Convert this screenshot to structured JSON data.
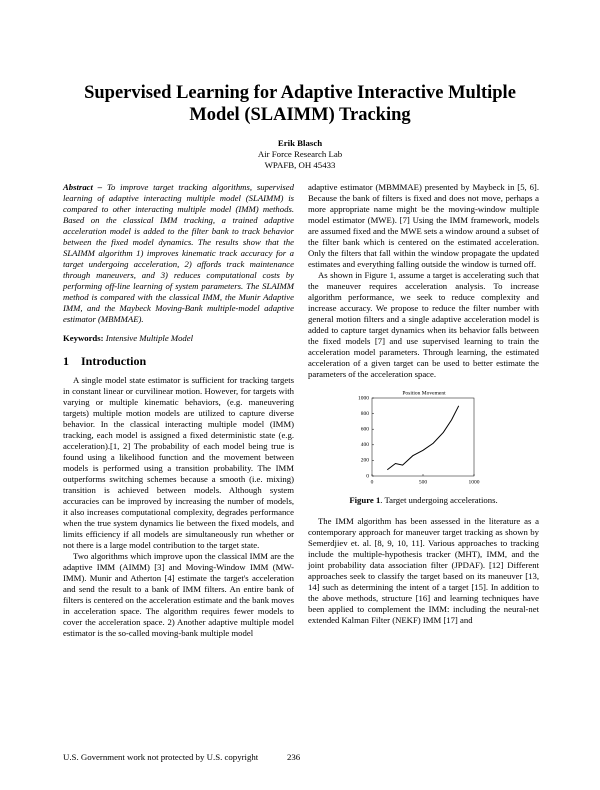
{
  "header": {
    "title": "Supervised Learning for Adaptive Interactive Multiple Model (SLAIMM) Tracking",
    "author": "Erik Blasch",
    "affiliation": "Air Force Research Lab",
    "address": "WPAFB, OH 45433"
  },
  "abstract": {
    "label": "Abstract –",
    "text": "To improve target tracking algorithms, supervised learning of adaptive interacting multiple model (SLAIMM) is compared to other interacting multiple model (IMM) methods. Based on the classical IMM tracking, a trained adaptive acceleration model is added to the filter bank to track behavior between the fixed model dynamics. The results show that the SLAIMM algorithm 1) improves kinematic track accuracy for a target undergoing acceleration, 2) affords track maintenance through maneuvers, and 3) reduces computational costs by performing off-line learning of system parameters. The SLAIMM method is compared with the classical IMM, the Munir Adaptive IMM, and the Maybeck Moving-Bank multiple-model adaptive estimator (MBMMAE)."
  },
  "keywords": {
    "label": "Keywords:",
    "text": "Intensive Multiple Model"
  },
  "section": {
    "number": "1",
    "title": "Introduction",
    "paragraphs": [
      "A single model state estimator is sufficient for tracking targets in constant linear or curvilinear motion. However, for targets with varying or multiple kinematic behaviors, (e.g. maneuvering targets) multiple motion models are utilized to capture diverse behavior. In the classical interacting multiple model (IMM) tracking, each model is assigned a fixed deterministic state (e.g. acceleration).[1, 2] The probability of each model being true is found using a likelihood function and the movement between models is performed using a transition probability. The IMM outperforms switching schemes because a smooth (i.e. mixing) transition is achieved between models. Although system accuracies can be improved by increasing the number of models, it also increases computational complexity, degrades performance when the true system dynamics lie between the fixed models, and limits efficiency if all models are simultaneously run whether or not there is a large model contribution to the target state.",
      "Two algorithms which improve upon the classical IMM are the adaptive IMM (AIMM) [3] and Moving-Window IMM (MW-IMM). Munir and Atherton [4] estimate the target's acceleration and send the result to a bank of IMM filters. An entire bank of filters is centered on the acceleration estimate and the bank moves in acceleration space. The algorithm requires fewer models to cover the acceleration space. 2) Another adaptive multiple model estimator is the so-called moving-bank multiple model",
      "adaptive estimator (MBMMAE) presented by Maybeck in [5, 6]. Because the bank of filters is fixed and does not move, perhaps a more appropriate name might be the moving-window multiple model estimator (MWE). [7] Using the IMM framework, models are assumed fixed and the MWE sets a window around a subset of the filter bank which is centered on the estimated acceleration. Only the filters that fall within the window propagate the updated estimates and everything falling outside the window is turned off.",
      "As shown in Figure 1, assume a target is accelerating such that the maneuver requires acceleration analysis. To increase algorithm performance, we seek to reduce complexity and increase accuracy. We propose to reduce the filter number with general motion filters and a single adaptive acceleration model is added to capture target dynamics when its behavior falls between the fixed models [7] and use supervised learning to train the acceleration model parameters. Through learning, the estimated acceleration of a given target can be used to better estimate the parameters of the acceleration space.",
      "The IMM algorithm has been assessed in the literature as a contemporary approach for maneuver target tracking as shown by Semerdjiev et. al. [8, 9, 10, 11]. Various approaches to tracking include the multiple-hypothesis tracker (MHT), IMM, and the joint probability data association filter (JPDAF). [12] Different approaches seek to classify the target based on its maneuver [13, 14] such as determining the intent of a target [15]. In addition to the above methods, structure [16] and learning techniques have been applied to complement the IMM: including the neural-net extended Kalman Filter (NEKF) IMM [17] and"
    ]
  },
  "figure": {
    "caption_label": "Figure 1",
    "caption": ". Target undergoing accelerations.",
    "chart_data": {
      "type": "line",
      "title": "Position Movement",
      "xlim": [
        0,
        1000
      ],
      "ylim": [
        0,
        1000
      ],
      "xticks": [
        0,
        500,
        1000
      ],
      "yticks": [
        0,
        200,
        400,
        600,
        800,
        1000
      ],
      "series": [
        {
          "color": "#000000",
          "x": [
            150,
            230,
            300,
            400,
            500,
            600,
            700,
            780,
            850
          ],
          "values": [
            80,
            160,
            140,
            260,
            330,
            420,
            560,
            720,
            900
          ]
        }
      ]
    }
  },
  "footer": {
    "text": "U.S. Government work not protected by U.S. copyright",
    "page": "236"
  }
}
